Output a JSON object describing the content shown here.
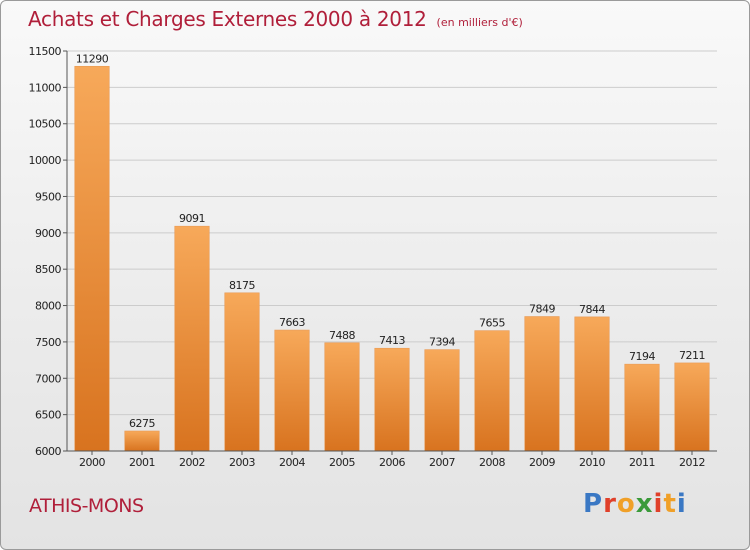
{
  "header": {
    "title": "Achats et Charges Externes 2000 à 2012",
    "subtitle": "(en milliers d'€)"
  },
  "footer": {
    "city": "ATHIS-MONS",
    "logo_letters": [
      "P",
      "r",
      "o",
      "x",
      "i",
      "t",
      "i"
    ],
    "logo_colors": [
      "#3a78c4",
      "#e0402a",
      "#f0a028",
      "#3a9a3a",
      "#e0402a",
      "#f0a028",
      "#3a78c4"
    ]
  },
  "colors": {
    "bar_light": "#f7a95a",
    "bar_dark": "#d8731f",
    "grid": "#cccccc",
    "axis": "#555555"
  },
  "chart_data": {
    "type": "bar",
    "title": "Achats et Charges Externes 2000 à 2012",
    "subtitle": "(en milliers d'€)",
    "categories": [
      "2000",
      "2001",
      "2002",
      "2003",
      "2004",
      "2005",
      "2006",
      "2007",
      "2008",
      "2009",
      "2010",
      "2011",
      "2012"
    ],
    "values": [
      11290,
      6275,
      9091,
      8175,
      7663,
      7488,
      7413,
      7394,
      7655,
      7849,
      7844,
      7194,
      7211
    ],
    "ylim": [
      6000,
      11500
    ],
    "yticks": [
      6000,
      6500,
      7000,
      7500,
      8000,
      8500,
      9000,
      9500,
      10000,
      10500,
      11000,
      11500
    ],
    "grid": true,
    "legend": "none"
  }
}
